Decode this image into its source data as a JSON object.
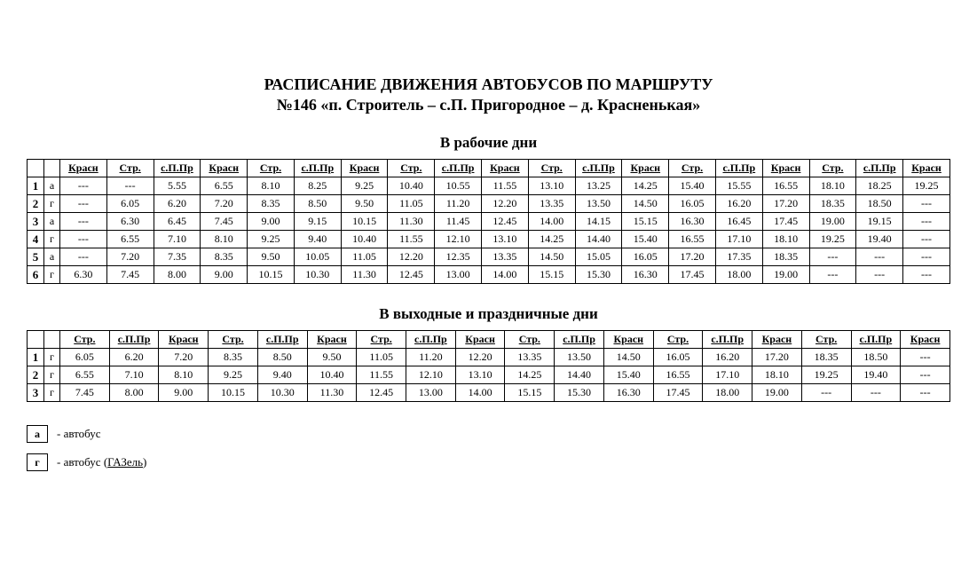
{
  "title_line1": "РАСПИСАНИЕ ДВИЖЕНИЯ АВТОБУСОВ ПО МАРШРУТУ",
  "title_line2": "№146 «п. Строитель – с.П. Пригородное – д. Красненькая»",
  "weekday": {
    "heading": "В рабочие дни",
    "headers": [
      "Красн",
      "Стр.",
      "с.П.Пр",
      "Красн",
      "Стр.",
      "с.П.Пр",
      "Красн",
      "Стр.",
      "с.П.Пр",
      "Красн",
      "Стр.",
      "с.П.Пр",
      "Красн",
      "Стр.",
      "с.П.Пр",
      "Красн",
      "Стр.",
      "с.П.Пр",
      "Красн"
    ],
    "rows": [
      {
        "num": "1",
        "type": "а",
        "cells": [
          "---",
          "---",
          "5.55",
          "6.55",
          "8.10",
          "8.25",
          "9.25",
          "10.40",
          "10.55",
          "11.55",
          "13.10",
          "13.25",
          "14.25",
          "15.40",
          "15.55",
          "16.55",
          "18.10",
          "18.25",
          "19.25"
        ]
      },
      {
        "num": "2",
        "type": "г",
        "cells": [
          "---",
          "6.05",
          "6.20",
          "7.20",
          "8.35",
          "8.50",
          "9.50",
          "11.05",
          "11.20",
          "12.20",
          "13.35",
          "13.50",
          "14.50",
          "16.05",
          "16.20",
          "17.20",
          "18.35",
          "18.50",
          "---"
        ]
      },
      {
        "num": "3",
        "type": "а",
        "cells": [
          "---",
          "6.30",
          "6.45",
          "7.45",
          "9.00",
          "9.15",
          "10.15",
          "11.30",
          "11.45",
          "12.45",
          "14.00",
          "14.15",
          "15.15",
          "16.30",
          "16.45",
          "17.45",
          "19.00",
          "19.15",
          "---"
        ]
      },
      {
        "num": "4",
        "type": "г",
        "cells": [
          "---",
          "6.55",
          "7.10",
          "8.10",
          "9.25",
          "9.40",
          "10.40",
          "11.55",
          "12.10",
          "13.10",
          "14.25",
          "14.40",
          "15.40",
          "16.55",
          "17.10",
          "18.10",
          "19.25",
          "19.40",
          "---"
        ]
      },
      {
        "num": "5",
        "type": "а",
        "cells": [
          "---",
          "7.20",
          "7.35",
          "8.35",
          "9.50",
          "10.05",
          "11.05",
          "12.20",
          "12.35",
          "13.35",
          "14.50",
          "15.05",
          "16.05",
          "17.20",
          "17.35",
          "18.35",
          "---",
          "---",
          "---"
        ]
      },
      {
        "num": "6",
        "type": "г",
        "cells": [
          "6.30",
          "7.45",
          "8.00",
          "9.00",
          "10.15",
          "10.30",
          "11.30",
          "12.45",
          "13.00",
          "14.00",
          "15.15",
          "15.30",
          "16.30",
          "17.45",
          "18.00",
          "19.00",
          "---",
          "---",
          "---"
        ]
      }
    ]
  },
  "weekend": {
    "heading": "В выходные и праздничные дни",
    "headers": [
      "Стр.",
      "с.П.Пр",
      "Красн",
      "Стр.",
      "с.П.Пр",
      "Красн",
      "Стр.",
      "с.П.Пр",
      "Красн",
      "Стр.",
      "с.П.Пр",
      "Красн",
      "Стр.",
      "с.П.Пр",
      "Красн",
      "Стр.",
      "с.П.Пр",
      "Красн"
    ],
    "rows": [
      {
        "num": "1",
        "type": "г",
        "cells": [
          "6.05",
          "6.20",
          "7.20",
          "8.35",
          "8.50",
          "9.50",
          "11.05",
          "11.20",
          "12.20",
          "13.35",
          "13.50",
          "14.50",
          "16.05",
          "16.20",
          "17.20",
          "18.35",
          "18.50",
          "---"
        ]
      },
      {
        "num": "2",
        "type": "г",
        "cells": [
          "6.55",
          "7.10",
          "8.10",
          "9.25",
          "9.40",
          "10.40",
          "11.55",
          "12.10",
          "13.10",
          "14.25",
          "14.40",
          "15.40",
          "16.55",
          "17.10",
          "18.10",
          "19.25",
          "19.40",
          "---"
        ]
      },
      {
        "num": "3",
        "type": "г",
        "cells": [
          "7.45",
          "8.00",
          "9.00",
          "10.15",
          "10.30",
          "11.30",
          "12.45",
          "13.00",
          "14.00",
          "15.15",
          "15.30",
          "16.30",
          "17.45",
          "18.00",
          "19.00",
          "---",
          "---",
          "---"
        ]
      }
    ]
  },
  "legend": {
    "a": {
      "symbol": "а",
      "text": "- автобус"
    },
    "g": {
      "symbol": "г",
      "text_prefix": "- автобус (",
      "text_underlined": "ГАЗель",
      "text_suffix": ")"
    }
  },
  "style": {
    "font_family": "Times New Roman",
    "text_color": "#000000",
    "background_color": "#ffffff",
    "border_color": "#000000",
    "title_fontsize": 18,
    "heading_fontsize": 17,
    "table_fontsize": 12
  }
}
